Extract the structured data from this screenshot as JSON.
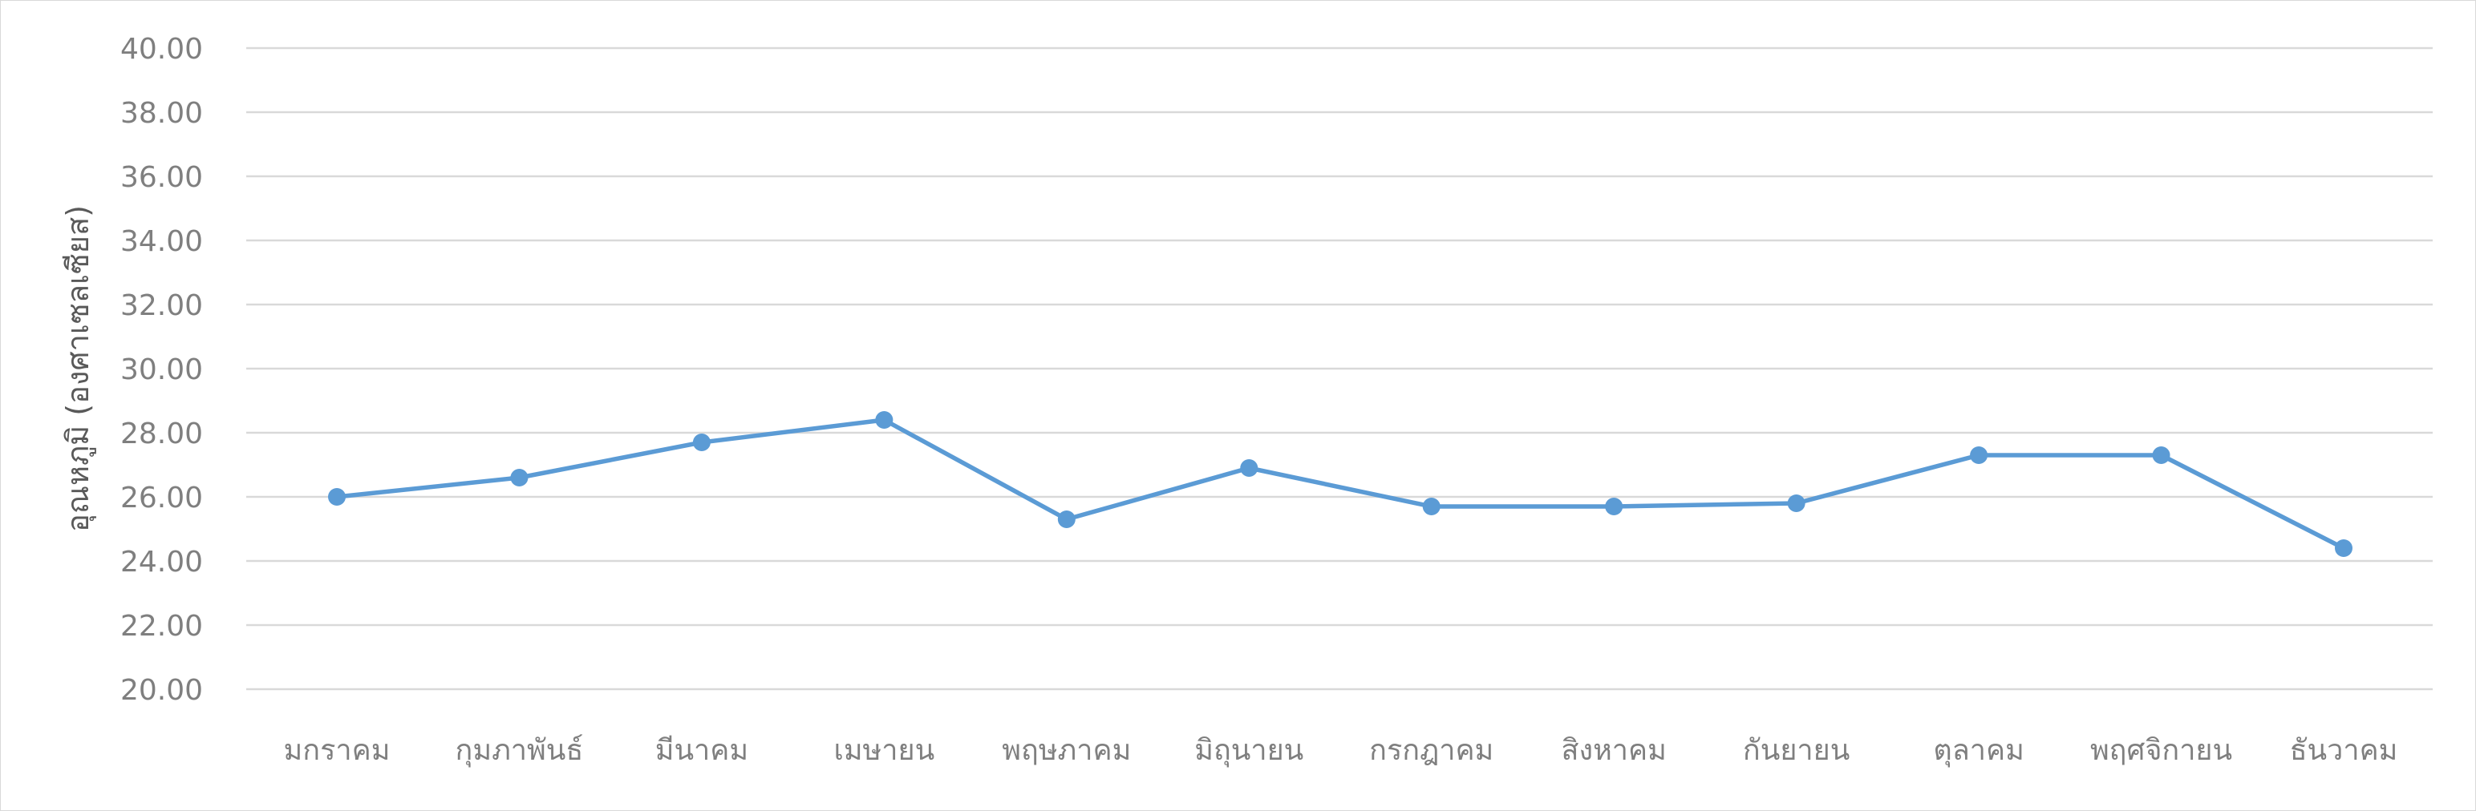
{
  "chart_data": {
    "type": "line",
    "title": "",
    "xlabel": "",
    "ylabel": "อุณหภูมิ (องศาเซลเซียส)",
    "ylim": [
      20,
      40
    ],
    "ytick_step": 2,
    "ytick_decimals": 2,
    "grid": true,
    "legend": "none",
    "categories": [
      "มกราคม",
      "กุมภาพันธ์",
      "มีนาคม",
      "เมษายน",
      "พฤษภาคม",
      "มิถุนายน",
      "กรกฎาคม",
      "สิงหาคม",
      "กันยายน",
      "ตุลาคม",
      "พฤศจิกายน",
      "ธันวาคม"
    ],
    "series": [
      {
        "values": [
          26.0,
          26.6,
          27.7,
          28.4,
          25.3,
          26.9,
          25.7,
          25.7,
          25.8,
          27.3,
          27.3,
          24.4
        ],
        "color": "#5b9bd5"
      }
    ]
  }
}
